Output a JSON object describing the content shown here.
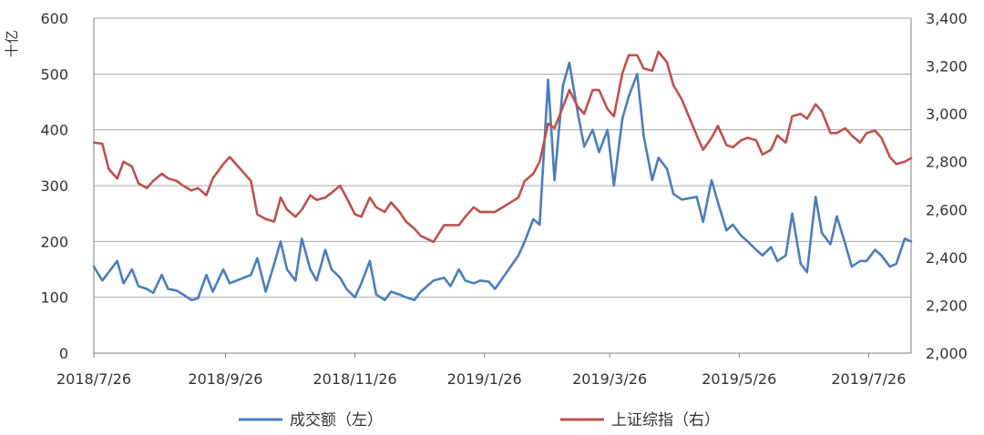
{
  "chart_data": {
    "type": "line",
    "unit_label": "十亿",
    "x_tick_labels": [
      "2018/7/26",
      "2018/9/26",
      "2018/11/26",
      "2019/1/26",
      "2019/3/26",
      "2019/5/26",
      "2019/7/26"
    ],
    "left_axis": {
      "ylim": [
        0,
        600
      ],
      "ticks": [
        "0",
        "100",
        "200",
        "300",
        "400",
        "500",
        "600"
      ]
    },
    "right_axis": {
      "ylim": [
        2000,
        3400
      ],
      "ticks": [
        "2,000",
        "2,200",
        "2,400",
        "2,600",
        "2,800",
        "3,000",
        "3,200",
        "3,400"
      ]
    },
    "grid": true,
    "legend_position": "bottom",
    "series": [
      {
        "name": "成交额（左）",
        "axis": "left",
        "color": "#4a7ebb",
        "points": [
          [
            "2018-07-26",
            155
          ],
          [
            "2018-07-30",
            130
          ],
          [
            "2018-08-02",
            145
          ],
          [
            "2018-08-06",
            165
          ],
          [
            "2018-08-09",
            125
          ],
          [
            "2018-08-13",
            150
          ],
          [
            "2018-08-16",
            120
          ],
          [
            "2018-08-20",
            115
          ],
          [
            "2018-08-23",
            108
          ],
          [
            "2018-08-27",
            140
          ],
          [
            "2018-08-30",
            115
          ],
          [
            "2018-09-03",
            112
          ],
          [
            "2018-09-06",
            105
          ],
          [
            "2018-09-10",
            95
          ],
          [
            "2018-09-13",
            98
          ],
          [
            "2018-09-17",
            140
          ],
          [
            "2018-09-20",
            110
          ],
          [
            "2018-09-25",
            150
          ],
          [
            "2018-09-28",
            125
          ],
          [
            "2018-10-08",
            140
          ],
          [
            "2018-10-11",
            170
          ],
          [
            "2018-10-15",
            110
          ],
          [
            "2018-10-19",
            160
          ],
          [
            "2018-10-22",
            200
          ],
          [
            "2018-10-25",
            150
          ],
          [
            "2018-10-29",
            130
          ],
          [
            "2018-11-01",
            205
          ],
          [
            "2018-11-05",
            150
          ],
          [
            "2018-11-08",
            130
          ],
          [
            "2018-11-12",
            185
          ],
          [
            "2018-11-15",
            150
          ],
          [
            "2018-11-19",
            135
          ],
          [
            "2018-11-22",
            115
          ],
          [
            "2018-11-26",
            100
          ],
          [
            "2018-11-29",
            125
          ],
          [
            "2018-12-03",
            165
          ],
          [
            "2018-12-06",
            105
          ],
          [
            "2018-12-10",
            95
          ],
          [
            "2018-12-13",
            110
          ],
          [
            "2018-12-17",
            105
          ],
          [
            "2018-12-20",
            100
          ],
          [
            "2018-12-24",
            95
          ],
          [
            "2018-12-27",
            110
          ],
          [
            "2019-01-02",
            130
          ],
          [
            "2019-01-07",
            135
          ],
          [
            "2019-01-10",
            120
          ],
          [
            "2019-01-14",
            150
          ],
          [
            "2019-01-17",
            130
          ],
          [
            "2019-01-21",
            125
          ],
          [
            "2019-01-24",
            130
          ],
          [
            "2019-01-28",
            128
          ],
          [
            "2019-01-31",
            115
          ],
          [
            "2019-02-11",
            175
          ],
          [
            "2019-02-14",
            200
          ],
          [
            "2019-02-18",
            240
          ],
          [
            "2019-02-21",
            230
          ],
          [
            "2019-02-25",
            490
          ],
          [
            "2019-02-28",
            310
          ],
          [
            "2019-03-04",
            480
          ],
          [
            "2019-03-07",
            520
          ],
          [
            "2019-03-11",
            430
          ],
          [
            "2019-03-14",
            370
          ],
          [
            "2019-03-18",
            400
          ],
          [
            "2019-03-21",
            360
          ],
          [
            "2019-03-25",
            400
          ],
          [
            "2019-03-28",
            300
          ],
          [
            "2019-04-01",
            420
          ],
          [
            "2019-04-04",
            460
          ],
          [
            "2019-04-08",
            500
          ],
          [
            "2019-04-11",
            390
          ],
          [
            "2019-04-15",
            310
          ],
          [
            "2019-04-18",
            350
          ],
          [
            "2019-04-22",
            330
          ],
          [
            "2019-04-25",
            285
          ],
          [
            "2019-04-29",
            275
          ],
          [
            "2019-05-06",
            280
          ],
          [
            "2019-05-09",
            235
          ],
          [
            "2019-05-13",
            310
          ],
          [
            "2019-05-16",
            270
          ],
          [
            "2019-05-20",
            220
          ],
          [
            "2019-05-23",
            230
          ],
          [
            "2019-05-27",
            210
          ],
          [
            "2019-05-30",
            200
          ],
          [
            "2019-06-03",
            185
          ],
          [
            "2019-06-06",
            175
          ],
          [
            "2019-06-10",
            190
          ],
          [
            "2019-06-13",
            165
          ],
          [
            "2019-06-17",
            175
          ],
          [
            "2019-06-20",
            250
          ],
          [
            "2019-06-24",
            160
          ],
          [
            "2019-06-27",
            145
          ],
          [
            "2019-07-01",
            280
          ],
          [
            "2019-07-04",
            215
          ],
          [
            "2019-07-08",
            195
          ],
          [
            "2019-07-11",
            245
          ],
          [
            "2019-07-15",
            195
          ],
          [
            "2019-07-18",
            155
          ],
          [
            "2019-07-22",
            165
          ],
          [
            "2019-07-25",
            165
          ],
          [
            "2019-07-29",
            185
          ],
          [
            "2019-08-01",
            175
          ],
          [
            "2019-08-05",
            155
          ],
          [
            "2019-08-08",
            160
          ],
          [
            "2019-08-12",
            205
          ],
          [
            "2019-08-15",
            200
          ]
        ]
      },
      {
        "name": "上证综指（右）",
        "axis": "right",
        "color": "#c0504d",
        "points": [
          [
            "2018-07-26",
            2880
          ],
          [
            "2018-07-30",
            2875
          ],
          [
            "2018-08-02",
            2770
          ],
          [
            "2018-08-06",
            2730
          ],
          [
            "2018-08-09",
            2800
          ],
          [
            "2018-08-13",
            2780
          ],
          [
            "2018-08-16",
            2710
          ],
          [
            "2018-08-20",
            2690
          ],
          [
            "2018-08-23",
            2720
          ],
          [
            "2018-08-27",
            2750
          ],
          [
            "2018-08-30",
            2730
          ],
          [
            "2018-09-03",
            2720
          ],
          [
            "2018-09-06",
            2700
          ],
          [
            "2018-09-10",
            2680
          ],
          [
            "2018-09-13",
            2690
          ],
          [
            "2018-09-17",
            2660
          ],
          [
            "2018-09-20",
            2730
          ],
          [
            "2018-09-25",
            2790
          ],
          [
            "2018-09-28",
            2820
          ],
          [
            "2018-10-08",
            2720
          ],
          [
            "2018-10-11",
            2580
          ],
          [
            "2018-10-15",
            2560
          ],
          [
            "2018-10-19",
            2550
          ],
          [
            "2018-10-22",
            2650
          ],
          [
            "2018-10-25",
            2600
          ],
          [
            "2018-10-29",
            2570
          ],
          [
            "2018-11-01",
            2600
          ],
          [
            "2018-11-05",
            2660
          ],
          [
            "2018-11-08",
            2640
          ],
          [
            "2018-11-12",
            2650
          ],
          [
            "2018-11-15",
            2670
          ],
          [
            "2018-11-19",
            2700
          ],
          [
            "2018-11-22",
            2650
          ],
          [
            "2018-11-26",
            2580
          ],
          [
            "2018-11-29",
            2570
          ],
          [
            "2018-12-03",
            2650
          ],
          [
            "2018-12-06",
            2610
          ],
          [
            "2018-12-10",
            2590
          ],
          [
            "2018-12-13",
            2630
          ],
          [
            "2018-12-17",
            2590
          ],
          [
            "2018-12-20",
            2550
          ],
          [
            "2018-12-24",
            2520
          ],
          [
            "2018-12-27",
            2490
          ],
          [
            "2019-01-02",
            2465
          ],
          [
            "2019-01-07",
            2535
          ],
          [
            "2019-01-10",
            2535
          ],
          [
            "2019-01-14",
            2535
          ],
          [
            "2019-01-17",
            2570
          ],
          [
            "2019-01-21",
            2610
          ],
          [
            "2019-01-24",
            2590
          ],
          [
            "2019-01-28",
            2590
          ],
          [
            "2019-01-31",
            2590
          ],
          [
            "2019-02-11",
            2650
          ],
          [
            "2019-02-14",
            2720
          ],
          [
            "2019-02-18",
            2750
          ],
          [
            "2019-02-21",
            2800
          ],
          [
            "2019-02-25",
            2960
          ],
          [
            "2019-02-28",
            2940
          ],
          [
            "2019-03-04",
            3030
          ],
          [
            "2019-03-07",
            3100
          ],
          [
            "2019-03-11",
            3030
          ],
          [
            "2019-03-14",
            3000
          ],
          [
            "2019-03-18",
            3100
          ],
          [
            "2019-03-21",
            3100
          ],
          [
            "2019-03-25",
            3020
          ],
          [
            "2019-03-28",
            2990
          ],
          [
            "2019-04-01",
            3170
          ],
          [
            "2019-04-04",
            3245
          ],
          [
            "2019-04-08",
            3245
          ],
          [
            "2019-04-11",
            3190
          ],
          [
            "2019-04-15",
            3180
          ],
          [
            "2019-04-18",
            3260
          ],
          [
            "2019-04-22",
            3215
          ],
          [
            "2019-04-25",
            3120
          ],
          [
            "2019-04-29",
            3060
          ],
          [
            "2019-05-06",
            2910
          ],
          [
            "2019-05-09",
            2850
          ],
          [
            "2019-05-13",
            2900
          ],
          [
            "2019-05-16",
            2950
          ],
          [
            "2019-05-20",
            2870
          ],
          [
            "2019-05-23",
            2860
          ],
          [
            "2019-05-27",
            2890
          ],
          [
            "2019-05-30",
            2900
          ],
          [
            "2019-06-03",
            2890
          ],
          [
            "2019-06-06",
            2830
          ],
          [
            "2019-06-10",
            2850
          ],
          [
            "2019-06-13",
            2910
          ],
          [
            "2019-06-17",
            2880
          ],
          [
            "2019-06-20",
            2990
          ],
          [
            "2019-06-24",
            3000
          ],
          [
            "2019-06-27",
            2980
          ],
          [
            "2019-07-01",
            3040
          ],
          [
            "2019-07-04",
            3010
          ],
          [
            "2019-07-08",
            2920
          ],
          [
            "2019-07-11",
            2920
          ],
          [
            "2019-07-15",
            2940
          ],
          [
            "2019-07-18",
            2910
          ],
          [
            "2019-07-22",
            2880
          ],
          [
            "2019-07-25",
            2920
          ],
          [
            "2019-07-29",
            2930
          ],
          [
            "2019-08-01",
            2900
          ],
          [
            "2019-08-05",
            2820
          ],
          [
            "2019-08-08",
            2790
          ],
          [
            "2019-08-12",
            2800
          ],
          [
            "2019-08-15",
            2815
          ]
        ]
      }
    ]
  }
}
